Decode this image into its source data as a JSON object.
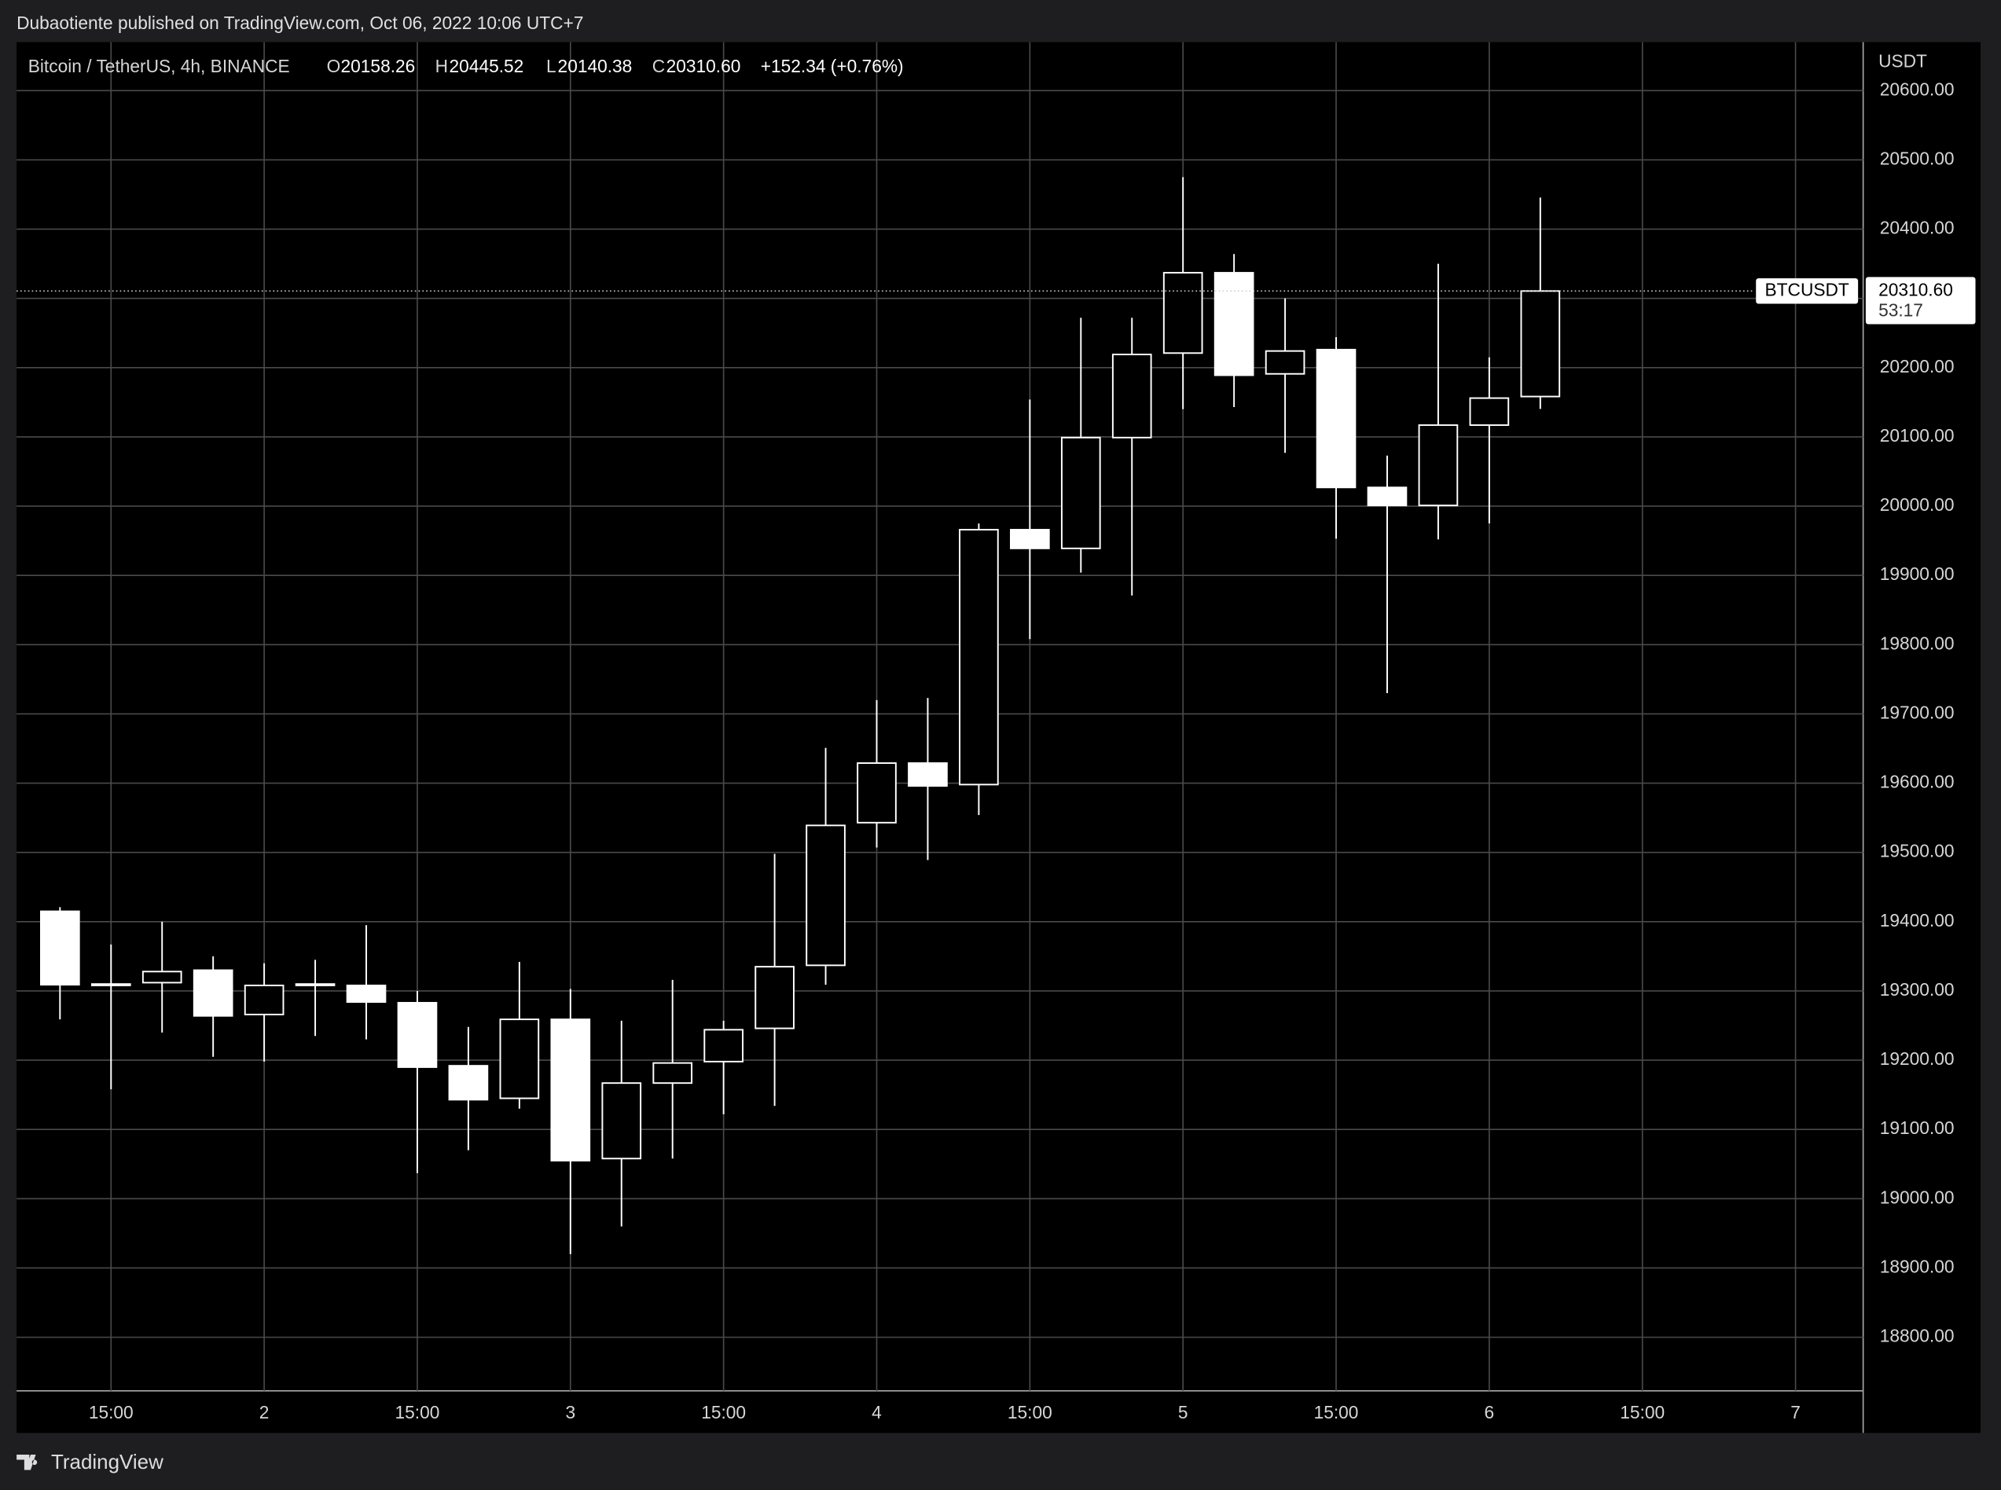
{
  "header": "Dubaotiente published on TradingView.com, Oct 06, 2022 10:06 UTC+7",
  "legend": {
    "symbol": "Bitcoin / TetherUS, 4h, BINANCE",
    "open_label": "O",
    "open": "20158.26",
    "high_label": "H",
    "high": "20445.52",
    "low_label": "L",
    "low": "20140.38",
    "close_label": "C",
    "close": "20310.60",
    "change": "+152.34 (+0.76%)"
  },
  "price_axis_unit": "USDT",
  "last_price": {
    "symbol": "BTCUSDT",
    "price": "20310.60",
    "countdown": "53:17"
  },
  "footer": "TradingView",
  "chart_data": {
    "type": "candlestick",
    "x": [
      0,
      1,
      2,
      3,
      4,
      5,
      6,
      7,
      8,
      9,
      10,
      11,
      12,
      13,
      14,
      15,
      16,
      17,
      18,
      19,
      20,
      21,
      22,
      23,
      24,
      25,
      26,
      27,
      28,
      29
    ],
    "open": [
      19415,
      19310,
      19312,
      19330,
      19266,
      19308,
      19308,
      19283,
      19192,
      19145,
      19259,
      19058,
      19167,
      19198,
      19246,
      19337,
      19543,
      19629,
      19598,
      19966,
      19939,
      20099,
      20221,
      20337,
      20191,
      20226,
      20027,
      20001,
      20117,
      20158.26
    ],
    "high": [
      19421,
      19367,
      19400,
      19350,
      19340,
      19345,
      19395,
      19300,
      19248,
      19342,
      19303,
      19257,
      19316,
      19257,
      19498,
      19651,
      19720,
      19723,
      19975,
      20154,
      20272,
      20272,
      20475,
      20364,
      20300,
      20244,
      20073,
      20350,
      20215,
      20445.52
    ],
    "low": [
      19259,
      19158,
      19240,
      19205,
      19198,
      19235,
      19230,
      19037,
      19070,
      19130,
      18920,
      18960,
      19058,
      19122,
      19134,
      19309,
      19507,
      19489,
      19554,
      19808,
      19904,
      19871,
      20140,
      20143,
      20077,
      19953,
      19730,
      19952,
      19975,
      20140.38
    ],
    "close": [
      19309,
      19308,
      19328,
      19264,
      19308,
      19310,
      19284,
      19190,
      19143,
      19259,
      19055,
      19167,
      19196,
      19244,
      19335,
      19539,
      19629,
      19596,
      19966,
      19939,
      20099,
      20219,
      20337,
      20189,
      20224,
      20027,
      20001,
      20117,
      20156,
      20310.6
    ],
    "color": "#ffffff",
    "xlim": [
      -0.85,
      35.325
    ],
    "xticks": [
      {
        "value": 1,
        "label": "15:00"
      },
      {
        "value": 4,
        "label": "2"
      },
      {
        "value": 7,
        "label": "15:00"
      },
      {
        "value": 10,
        "label": "3"
      },
      {
        "value": 13,
        "label": "15:00"
      },
      {
        "value": 16,
        "label": "4"
      },
      {
        "value": 19,
        "label": "15:00"
      },
      {
        "value": 22,
        "label": "5"
      },
      {
        "value": 25,
        "label": "15:00"
      },
      {
        "value": 28,
        "label": "6"
      },
      {
        "value": 31,
        "label": "15:00"
      },
      {
        "value": 34,
        "label": "7"
      }
    ],
    "ylim": [
      18722.6,
      20670
    ],
    "yticks": [
      {
        "value": 18800,
        "label": "18800.00"
      },
      {
        "value": 18900,
        "label": "18900.00"
      },
      {
        "value": 19000,
        "label": "19000.00"
      },
      {
        "value": 19100,
        "label": "19100.00"
      },
      {
        "value": 19200,
        "label": "19200.00"
      },
      {
        "value": 19300,
        "label": "19300.00"
      },
      {
        "value": 19400,
        "label": "19400.00"
      },
      {
        "value": 19500,
        "label": "19500.00"
      },
      {
        "value": 19600,
        "label": "19600.00"
      },
      {
        "value": 19700,
        "label": "19700.00"
      },
      {
        "value": 19800,
        "label": "19800.00"
      },
      {
        "value": 19900,
        "label": "19900.00"
      },
      {
        "value": 20000,
        "label": "20000.00"
      },
      {
        "value": 20100,
        "label": "20100.00"
      },
      {
        "value": 20200,
        "label": "20200.00"
      },
      {
        "value": 20300,
        "label": "20300.00"
      },
      {
        "value": 20400,
        "label": "20400.00"
      },
      {
        "value": 20500,
        "label": "20500.00"
      },
      {
        "value": 20600,
        "label": "20600.00"
      }
    ],
    "last_value": 20310.6,
    "grid": true
  }
}
